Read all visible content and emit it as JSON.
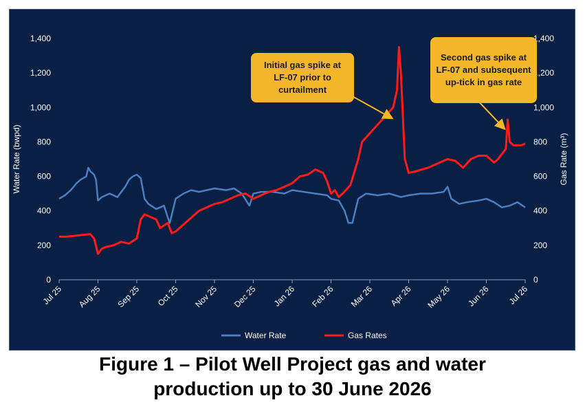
{
  "caption": {
    "line1": "Figure 1 – Pilot Well Project gas and water",
    "line2": "production up to 30 June 2026"
  },
  "annotations": [
    {
      "text": "Initial gas spike at LF-07 prior to curtailment",
      "target_month": 8.55,
      "target_value": 160
    },
    {
      "text": "Second gas spike at LF-07 and subsequent up-tick in gas rate",
      "target_month": 11.45,
      "target_value": 100
    }
  ],
  "colors": {
    "background": "#0a1f44",
    "water": "#4a7fc1",
    "gas": "#ff1a1a",
    "callout": "#f4b72a",
    "text": "#ffffff"
  },
  "chart_data": {
    "type": "line",
    "xlabel": "",
    "ylabel": "Water Rate (bwpd)",
    "y2label": "Gas Rate (m³)",
    "ylim": [
      0,
      1400
    ],
    "y2lim": [
      0,
      1400
    ],
    "yticks": [
      "0",
      "200",
      "400",
      "600",
      "800",
      "1,000",
      "1,200",
      "1,400"
    ],
    "y2ticks": [
      "0",
      "200",
      "400",
      "600",
      "800",
      "1,000",
      "1,200",
      "1,400"
    ],
    "categories": [
      "Jul 25",
      "Aug 25",
      "Sep 25",
      "Oct 25",
      "Nov 25",
      "Dec 25",
      "Jan 26",
      "Feb 26",
      "Mar 26",
      "Apr 26",
      "May 26",
      "Jun 26",
      "Jul 26"
    ],
    "legend_position": "bottom-center",
    "grid": false,
    "series": [
      {
        "name": "Water Rate",
        "axis": "left",
        "x": [
          0,
          0.15,
          0.3,
          0.45,
          0.55,
          0.7,
          0.75,
          0.8,
          0.9,
          0.95,
          1.0,
          1.1,
          1.3,
          1.5,
          1.7,
          1.8,
          1.9,
          2.0,
          2.1,
          2.2,
          2.3,
          2.5,
          2.7,
          2.8,
          2.85,
          3.0,
          3.2,
          3.4,
          3.6,
          3.8,
          4.0,
          4.3,
          4.5,
          4.7,
          4.9,
          5.0,
          5.2,
          5.5,
          5.8,
          6.0,
          6.3,
          6.6,
          6.9,
          7.0,
          7.2,
          7.35,
          7.45,
          7.55,
          7.7,
          7.9,
          8.2,
          8.5,
          8.8,
          9.0,
          9.3,
          9.6,
          9.9,
          10.0,
          10.1,
          10.3,
          10.5,
          10.8,
          11.0,
          11.2,
          11.4,
          11.6,
          11.8,
          12.0
        ],
        "values": [
          470,
          490,
          520,
          560,
          580,
          600,
          650,
          630,
          610,
          580,
          460,
          480,
          500,
          480,
          540,
          580,
          600,
          610,
          590,
          470,
          440,
          410,
          430,
          360,
          330,
          470,
          500,
          520,
          510,
          520,
          530,
          520,
          530,
          500,
          430,
          500,
          510,
          510,
          500,
          520,
          510,
          500,
          490,
          470,
          460,
          400,
          330,
          330,
          470,
          500,
          490,
          500,
          480,
          490,
          500,
          500,
          510,
          540,
          470,
          440,
          450,
          460,
          470,
          450,
          420,
          430,
          450,
          420
        ]
      },
      {
        "name": "Gas Rates",
        "axis": "right",
        "x": [
          0,
          0.2,
          0.4,
          0.6,
          0.8,
          0.9,
          1.0,
          1.1,
          1.2,
          1.4,
          1.6,
          1.8,
          2.0,
          2.1,
          2.2,
          2.3,
          2.4,
          2.5,
          2.6,
          2.8,
          2.9,
          3.0,
          3.2,
          3.4,
          3.6,
          3.8,
          4.0,
          4.2,
          4.4,
          4.6,
          4.8,
          5.0,
          5.2,
          5.4,
          5.6,
          5.8,
          6.0,
          6.2,
          6.4,
          6.6,
          6.8,
          6.9,
          7.0,
          7.1,
          7.2,
          7.3,
          7.5,
          7.7,
          7.8,
          8.0,
          8.2,
          8.4,
          8.6,
          8.7,
          8.75,
          8.8,
          8.9,
          9.0,
          9.2,
          9.5,
          9.8,
          10.0,
          10.2,
          10.4,
          10.6,
          10.8,
          11.0,
          11.2,
          11.3,
          11.4,
          11.5,
          11.55,
          11.6,
          11.7,
          11.8,
          11.9,
          12.0
        ],
        "values": [
          250,
          250,
          255,
          260,
          265,
          240,
          150,
          180,
          190,
          200,
          220,
          210,
          240,
          350,
          380,
          370,
          360,
          350,
          300,
          330,
          270,
          280,
          320,
          360,
          400,
          420,
          440,
          450,
          470,
          490,
          500,
          470,
          490,
          510,
          520,
          540,
          560,
          600,
          610,
          640,
          620,
          570,
          500,
          520,
          480,
          500,
          550,
          700,
          800,
          850,
          900,
          950,
          1000,
          1100,
          1350,
          1200,
          700,
          620,
          630,
          650,
          680,
          700,
          690,
          650,
          700,
          720,
          720,
          680,
          700,
          730,
          760,
          930,
          800,
          780,
          780,
          780,
          790
        ]
      }
    ]
  }
}
